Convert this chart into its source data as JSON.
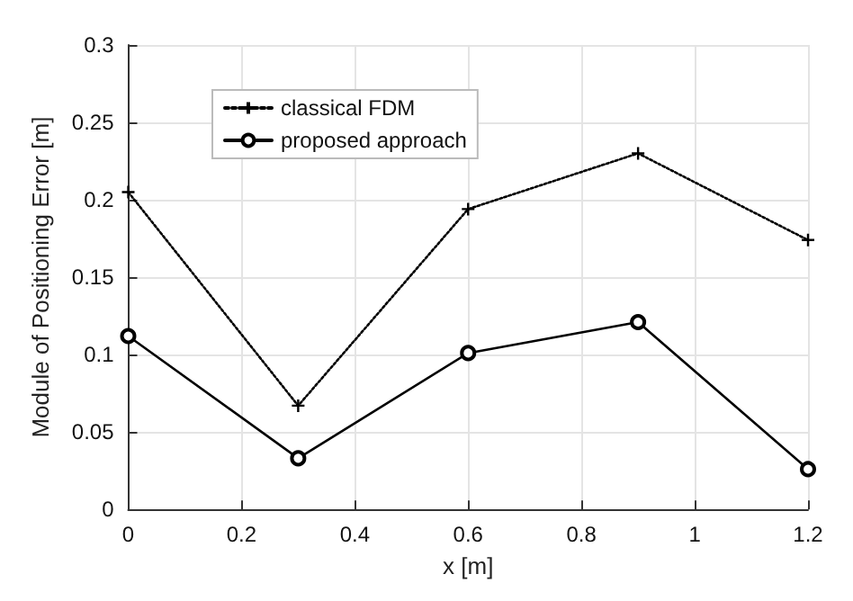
{
  "chart_data": {
    "type": "line",
    "xlabel": "x [m]",
    "ylabel": "Module of Positioning Error [m]",
    "x": [
      0,
      0.3,
      0.6,
      0.9,
      1.2
    ],
    "series": [
      {
        "name": "classical FDM",
        "color": "#000000",
        "marker": "cross",
        "line_style": "dotted",
        "values": [
          0.205,
          0.067,
          0.194,
          0.23,
          0.174
        ]
      },
      {
        "name": "proposed approach",
        "color": "#000000",
        "marker": "circle",
        "line_style": "solid",
        "values": [
          0.112,
          0.033,
          0.101,
          0.121,
          0.026
        ]
      }
    ],
    "xlim": [
      0,
      1.2
    ],
    "xticks": [
      0,
      0.2,
      0.4,
      0.6,
      0.8,
      1,
      1.2
    ],
    "ylim": [
      0,
      0.3
    ],
    "yticks": [
      0,
      0.05,
      0.1,
      0.15,
      0.2,
      0.25,
      0.3
    ],
    "grid": true,
    "legend": "top left"
  }
}
